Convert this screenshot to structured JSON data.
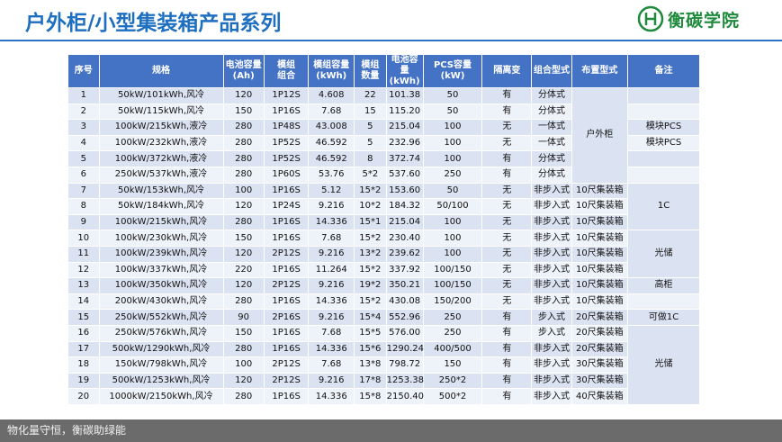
{
  "header": {
    "title": "户外柜/小型集装箱产品系列",
    "logo_text": "衡碳学院"
  },
  "table": {
    "headers": [
      "序号",
      "规格",
      "电池容量\n(Ah)",
      "模组\n组合",
      "模组容量\n(kWh)",
      "模组\n数量",
      "电池容量\n(kWh)",
      "PCS容量\n(kW)",
      "隔离变",
      "组合型式",
      "布置型式",
      "备注"
    ],
    "rows": [
      [
        "1",
        "50kW/101kWh,风冷",
        "120",
        "1P12S",
        "4.608",
        "22",
        "101.38",
        "50",
        "有",
        "分体式",
        "户外柜",
        null
      ],
      [
        "2",
        "50kW/115kWh,风冷",
        "150",
        "1P16S",
        "7.68",
        "15",
        "115.20",
        "50",
        "有",
        "分体式",
        null,
        null
      ],
      [
        "3",
        "100kW/215kWh,液冷",
        "280",
        "1P48S",
        "43.008",
        "5",
        "215.04",
        "100",
        "无",
        "一体式",
        null,
        "模块PCS"
      ],
      [
        "4",
        "100kW/232kWh,液冷",
        "280",
        "1P52S",
        "46.592",
        "5",
        "232.96",
        "100",
        "无",
        "一体式",
        null,
        "模块PCS"
      ],
      [
        "5",
        "100kW/372kWh,液冷",
        "280",
        "1P52S",
        "46.592",
        "8",
        "372.74",
        "100",
        "有",
        "分体式",
        null,
        null
      ],
      [
        "6",
        "250kW/537kWh,液冷",
        "280",
        "1P60S",
        "53.76",
        "5*2",
        "537.60",
        "250",
        "有",
        "分体式",
        null,
        null
      ],
      [
        "7",
        "50kW/153kWh,风冷",
        "100",
        "1P16S",
        "5.12",
        "15*2",
        "153.60",
        "50",
        "无",
        "非步入式",
        "10尺集装箱",
        "1C"
      ],
      [
        "8",
        "50kW/184kWh,风冷",
        "120",
        "1P24S",
        "9.216",
        "10*2",
        "184.32",
        "50/100",
        "无",
        "非步入式",
        "10尺集装箱",
        null
      ],
      [
        "9",
        "100kW/215kWh,风冷",
        "280",
        "1P16S",
        "14.336",
        "15*1",
        "215.04",
        "100",
        "无",
        "非步入式",
        "10尺集装箱",
        null
      ],
      [
        "10",
        "100kW/230kWh,风冷",
        "150",
        "1P16S",
        "7.68",
        "15*2",
        "230.40",
        "100",
        "无",
        "非步入式",
        "10尺集装箱",
        "光储"
      ],
      [
        "11",
        "100kW/239kWh,风冷",
        "120",
        "2P12S",
        "9.216",
        "13*2",
        "239.62",
        "100",
        "无",
        "非步入式",
        "10尺集装箱",
        null
      ],
      [
        "12",
        "100kW/337kWh,风冷",
        "220",
        "1P16S",
        "11.264",
        "15*2",
        "337.92",
        "100/150",
        "无",
        "非步入式",
        "10尺集装箱",
        null
      ],
      [
        "13",
        "100kW/350kWh,风冷",
        "120",
        "2P12S",
        "9.216",
        "19*2",
        "350.21",
        "100/150",
        "无",
        "非步入式",
        "10尺集装箱",
        "高柜"
      ],
      [
        "14",
        "200kW/430kWh,风冷",
        "280",
        "1P16S",
        "14.336",
        "15*2",
        "430.08",
        "150/200",
        "无",
        "非步入式",
        "10尺集装箱",
        null
      ],
      [
        "15",
        "250kW/552kWh,风冷",
        "90",
        "2P16S",
        "9.216",
        "15*4",
        "552.96",
        "250",
        "有",
        "步入式",
        "20尺集装箱",
        "可做1C"
      ],
      [
        "16",
        "250kW/576kWh,风冷",
        "150",
        "1P16S",
        "7.68",
        "15*5",
        "576.00",
        "250",
        "有",
        "步入式",
        "20尺集装箱",
        "光储"
      ],
      [
        "17",
        "500kW/1290kWh,风冷",
        "280",
        "1P16S",
        "14.336",
        "15*6",
        "1290.24",
        "400/500",
        "有",
        "非步入式",
        "20尺集装箱",
        null
      ],
      [
        "18",
        "150kW/798kWh,风冷",
        "100",
        "2P12S",
        "7.68",
        "13*8",
        "798.72",
        "150",
        "有",
        "非步入式",
        "30尺集装箱",
        null
      ],
      [
        "19",
        "500kW/1253kWh,风冷",
        "120",
        "2P12S",
        "9.216",
        "17*8",
        "1253.38",
        "250*2",
        "有",
        "非步入式",
        "30尺集装箱",
        null
      ],
      [
        "20",
        "1000kW/2150kWh,风冷",
        "280",
        "1P16S",
        "14.336",
        "15*8",
        "2150.40",
        "500*2",
        "有",
        "非步入式",
        "40尺集装箱",
        null
      ]
    ]
  },
  "footer": {
    "text": "物化量守恒，衡碳助绿能"
  }
}
